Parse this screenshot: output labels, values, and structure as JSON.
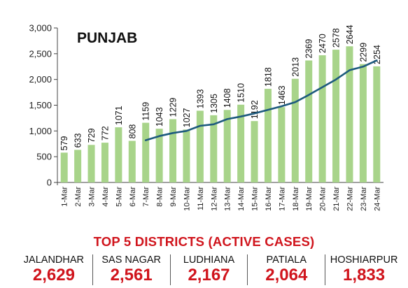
{
  "chart_data": {
    "type": "bar",
    "title": "PUNJAB",
    "categories": [
      "1-Mar",
      "2-Mar",
      "3-Mar",
      "4-Mar",
      "5-Mar",
      "6-Mar",
      "7-Mar",
      "8-Mar",
      "9-Mar",
      "10-Mar",
      "11-Mar",
      "12-Mar",
      "13-Mar",
      "14-Mar",
      "15-Mar",
      "16-Mar",
      "17-Mar",
      "18-Mar",
      "19-Mar",
      "20-Mar",
      "21-Mar",
      "22-Mar",
      "23-Mar",
      "24-Mar"
    ],
    "values": [
      579,
      633,
      729,
      772,
      1071,
      808,
      1159,
      1043,
      1229,
      1027,
      1393,
      1305,
      1408,
      1510,
      1192,
      1818,
      1463,
      2013,
      2369,
      2470,
      2578,
      2644,
      2299,
      2254
    ],
    "value_labels": [
      "579",
      "633",
      "729",
      "772",
      "1071",
      "808",
      "1159",
      "1043",
      "1229",
      "1027",
      "1393",
      "1305",
      "1408",
      "1510",
      "1192",
      "1818",
      "1463",
      "2013",
      "2369",
      "2470",
      "2578",
      "2644",
      "2299",
      "2254"
    ],
    "trend": [
      null,
      null,
      null,
      null,
      null,
      null,
      820,
      900,
      960,
      1000,
      1100,
      1130,
      1230,
      1280,
      1340,
      1410,
      1480,
      1560,
      1700,
      1850,
      2000,
      2180,
      2250,
      2370
    ],
    "ylim": [
      0,
      3000
    ],
    "yticks": [
      0,
      500,
      1000,
      1500,
      2000,
      2500,
      3000
    ],
    "ytick_labels": [
      "0",
      "500",
      "1,000",
      "1,500",
      "2,000",
      "2,500",
      "3,000"
    ],
    "xlabel": "",
    "ylabel": "",
    "grid": false,
    "bar_color": "#a8d48a",
    "trend_color": "#1d5a7e"
  },
  "districts_title": "TOP 5 DISTRICTS (ACTIVE CASES)",
  "districts": [
    {
      "name": "JALANDHAR",
      "value": "2,629"
    },
    {
      "name": "SAS NAGAR",
      "value": "2,561"
    },
    {
      "name": "LUDHIANA",
      "value": "2,167"
    },
    {
      "name": "PATIALA",
      "value": "2,064"
    },
    {
      "name": "HOSHIARPUR",
      "value": "1,833"
    }
  ]
}
